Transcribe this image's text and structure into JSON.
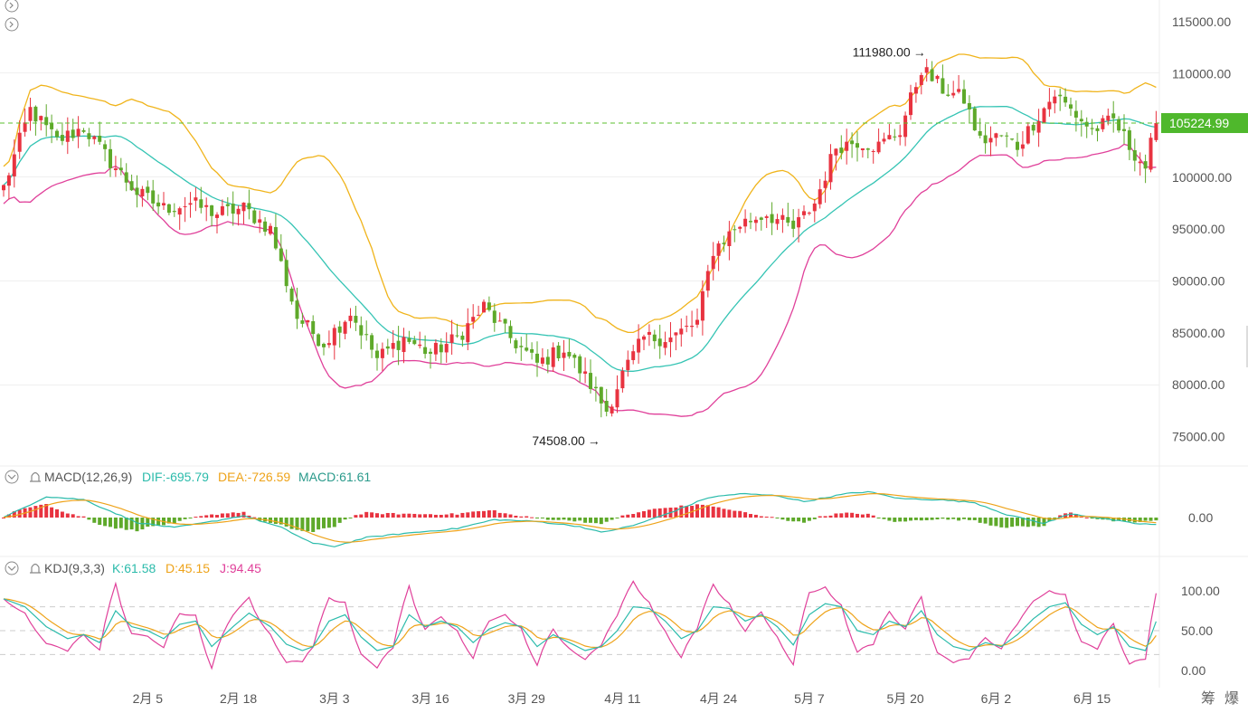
{
  "chart_data": {
    "type": "candlestick",
    "panels": {
      "price": {
        "y_ticks": [
          "115000.00",
          "110000.00",
          "105000.00",
          "100000.00",
          "95000.00",
          "90000.00",
          "85000.00",
          "80000.00",
          "75000.00"
        ],
        "ylim": [
          72500,
          116500
        ],
        "current_price_label": "105224.99",
        "current_price": 105224.99,
        "high_label": "111980.00",
        "high_value": 111980.0,
        "low_label": "74508.00",
        "low_value": 74508.0,
        "up_color": "#e83340",
        "down_color": "#5ea92a",
        "mid_band_color": "#35c4b4",
        "upper_band_color": "#f0b41b",
        "lower_band_color": "#e0409a"
      },
      "macd": {
        "title": "MACD(12,26,9)",
        "dif_label": "DIF:-695.79",
        "dea_label": "DEA:-726.59",
        "macd_label": "MACD:61.61",
        "y_ticks": [
          "0.00"
        ]
      },
      "kdj": {
        "title": "KDJ(9,3,3)",
        "k_label": "K:61.58",
        "d_label": "D:45.15",
        "j_label": "J:94.45",
        "y_ticks": [
          "100.00",
          "50.00",
          "0.00"
        ],
        "ylim": [
          -15,
          120
        ]
      }
    },
    "x_labels": [
      "2月 5",
      "2月 18",
      "3月 3",
      "3月 16",
      "3月 29",
      "4月 11",
      "4月 24",
      "5月 7",
      "5月 20",
      "6月 2",
      "6月 15"
    ],
    "corner_buttons": [
      "筹",
      "爆"
    ],
    "close_waypoints": [
      [
        0,
        99000
      ],
      [
        5,
        106500
      ],
      [
        10,
        103500
      ],
      [
        15,
        104800
      ],
      [
        20,
        101500
      ],
      [
        25,
        98500
      ],
      [
        30,
        97000
      ],
      [
        35,
        97500
      ],
      [
        40,
        96500
      ],
      [
        45,
        97000
      ],
      [
        50,
        95000
      ],
      [
        55,
        86500
      ],
      [
        60,
        84000
      ],
      [
        65,
        87000
      ],
      [
        70,
        82500
      ],
      [
        75,
        84500
      ],
      [
        80,
        83000
      ],
      [
        85,
        84500
      ],
      [
        90,
        87500
      ],
      [
        95,
        84500
      ],
      [
        100,
        82000
      ],
      [
        105,
        83500
      ],
      [
        110,
        80000
      ],
      [
        113,
        77500
      ],
      [
        116,
        81000
      ],
      [
        120,
        84500
      ],
      [
        125,
        84500
      ],
      [
        130,
        86000
      ],
      [
        133,
        93000
      ],
      [
        138,
        95500
      ],
      [
        143,
        96500
      ],
      [
        148,
        95000
      ],
      [
        152,
        97500
      ],
      [
        156,
        103000
      ],
      [
        160,
        103500
      ],
      [
        164,
        103000
      ],
      [
        168,
        104500
      ],
      [
        172,
        110500
      ],
      [
        176,
        108500
      ],
      [
        180,
        107500
      ],
      [
        183,
        103500
      ],
      [
        187,
        104000
      ],
      [
        190,
        103000
      ],
      [
        194,
        106000
      ],
      [
        197,
        108000
      ],
      [
        200,
        106500
      ],
      [
        204,
        104500
      ],
      [
        208,
        105500
      ],
      [
        211,
        103000
      ],
      [
        214,
        101000
      ],
      [
        216,
        105225
      ]
    ],
    "macd_waypoints": [
      [
        0,
        1
      ],
      [
        8,
        2100
      ],
      [
        15,
        1800
      ],
      [
        25,
        -500
      ],
      [
        32,
        -1000
      ],
      [
        38,
        -500
      ],
      [
        45,
        200
      ],
      [
        52,
        -1000
      ],
      [
        58,
        -2600
      ],
      [
        62,
        -2900
      ],
      [
        68,
        -2000
      ],
      [
        75,
        -1600
      ],
      [
        85,
        -1100
      ],
      [
        92,
        -200
      ],
      [
        100,
        -400
      ],
      [
        108,
        -900
      ],
      [
        112,
        -1500
      ],
      [
        118,
        -800
      ],
      [
        125,
        500
      ],
      [
        132,
        2000
      ],
      [
        138,
        2400
      ],
      [
        145,
        2200
      ],
      [
        150,
        1600
      ],
      [
        158,
        2400
      ],
      [
        162,
        2600
      ],
      [
        168,
        1900
      ],
      [
        175,
        1800
      ],
      [
        182,
        1500
      ],
      [
        188,
        300
      ],
      [
        195,
        -600
      ],
      [
        200,
        400
      ],
      [
        206,
        -100
      ],
      [
        212,
        -600
      ],
      [
        216,
        -696
      ]
    ],
    "kdj_waypoints": [
      [
        0,
        90
      ],
      [
        4,
        80
      ],
      [
        8,
        55
      ],
      [
        12,
        40
      ],
      [
        15,
        45
      ],
      [
        18,
        35
      ],
      [
        21,
        75
      ],
      [
        24,
        55
      ],
      [
        27,
        50
      ],
      [
        30,
        40
      ],
      [
        33,
        58
      ],
      [
        36,
        62
      ],
      [
        39,
        30
      ],
      [
        43,
        55
      ],
      [
        46,
        72
      ],
      [
        50,
        55
      ],
      [
        53,
        33
      ],
      [
        56,
        25
      ],
      [
        58,
        30
      ],
      [
        61,
        62
      ],
      [
        64,
        70
      ],
      [
        67,
        42
      ],
      [
        70,
        25
      ],
      [
        73,
        30
      ],
      [
        76,
        70
      ],
      [
        79,
        55
      ],
      [
        82,
        62
      ],
      [
        85,
        55
      ],
      [
        88,
        35
      ],
      [
        91,
        52
      ],
      [
        94,
        60
      ],
      [
        97,
        55
      ],
      [
        100,
        30
      ],
      [
        103,
        45
      ],
      [
        106,
        35
      ],
      [
        109,
        25
      ],
      [
        112,
        30
      ],
      [
        115,
        50
      ],
      [
        118,
        80
      ],
      [
        121,
        78
      ],
      [
        124,
        62
      ],
      [
        127,
        40
      ],
      [
        130,
        50
      ],
      [
        133,
        80
      ],
      [
        136,
        78
      ],
      [
        139,
        62
      ],
      [
        142,
        70
      ],
      [
        145,
        55
      ],
      [
        148,
        32
      ],
      [
        151,
        70
      ],
      [
        154,
        84
      ],
      [
        157,
        80
      ],
      [
        160,
        50
      ],
      [
        163,
        45
      ],
      [
        166,
        62
      ],
      [
        169,
        55
      ],
      [
        172,
        75
      ],
      [
        175,
        45
      ],
      [
        178,
        30
      ],
      [
        181,
        25
      ],
      [
        184,
        35
      ],
      [
        187,
        30
      ],
      [
        190,
        45
      ],
      [
        193,
        65
      ],
      [
        196,
        80
      ],
      [
        199,
        85
      ],
      [
        202,
        58
      ],
      [
        205,
        45
      ],
      [
        208,
        55
      ],
      [
        211,
        30
      ],
      [
        214,
        25
      ],
      [
        216,
        61.58
      ]
    ]
  }
}
